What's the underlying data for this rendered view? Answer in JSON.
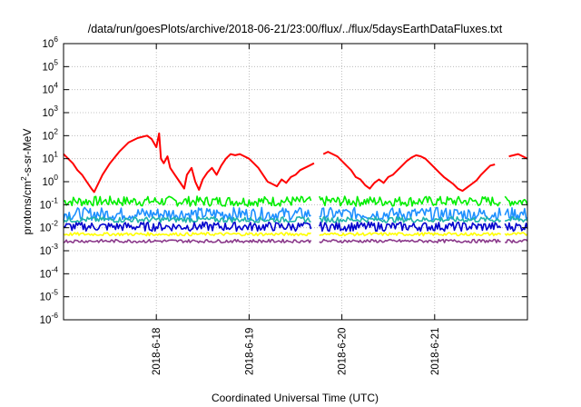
{
  "chart_data": {
    "type": "line",
    "title": "/data/run/goesPlots/archive/2018-06-21/23:00/flux/../flux/5daysEarthDataFluxes.txt",
    "xlabel": "Coordinated Universal Time (UTC)",
    "ylabel": {
      "pre": "protons/cm",
      "sup": "2",
      "post": "-s-sr-MeV"
    },
    "yscale": "log",
    "ylim": [
      -6,
      6
    ],
    "y_ticks": [
      {
        "base": "10",
        "exp": "-6"
      },
      {
        "base": "10",
        "exp": "-5"
      },
      {
        "base": "10",
        "exp": "-4"
      },
      {
        "base": "10",
        "exp": "-3"
      },
      {
        "base": "10",
        "exp": "-2"
      },
      {
        "base": "10",
        "exp": "-1"
      },
      {
        "base": "10",
        "exp": "0"
      },
      {
        "base": "10",
        "exp": "1"
      },
      {
        "base": "10",
        "exp": "2"
      },
      {
        "base": "10",
        "exp": "3"
      },
      {
        "base": "10",
        "exp": "4"
      },
      {
        "base": "10",
        "exp": "5"
      },
      {
        "base": "10",
        "exp": "6"
      }
    ],
    "xlim": [
      0,
      5
    ],
    "x_tick_labels": [
      {
        "x": 1,
        "label": "2018-6-18"
      },
      {
        "x": 2,
        "label": "2018-6-19"
      },
      {
        "x": 3,
        "label": "2018-6-20"
      },
      {
        "x": 4,
        "label": "2018-6-21"
      }
    ],
    "grid": true,
    "series": [
      {
        "color": "#ff0000",
        "points": [
          [
            0,
            1.2
          ],
          [
            0.05,
            1.0
          ],
          [
            0.1,
            0.8
          ],
          [
            0.15,
            0.5
          ],
          [
            0.2,
            0.3
          ],
          [
            0.25,
            0.0
          ],
          [
            0.3,
            -0.3
          ],
          [
            0.33,
            -0.45
          ],
          [
            0.36,
            -0.2
          ],
          [
            0.42,
            0.3
          ],
          [
            0.5,
            0.8
          ],
          [
            0.6,
            1.3
          ],
          [
            0.7,
            1.7
          ],
          [
            0.8,
            1.9
          ],
          [
            0.9,
            2.0
          ],
          [
            0.95,
            1.85
          ],
          [
            1.0,
            1.5
          ],
          [
            1.03,
            2.1
          ],
          [
            1.05,
            1.0
          ],
          [
            1.08,
            0.8
          ],
          [
            1.12,
            1.1
          ],
          [
            1.15,
            0.6
          ],
          [
            1.2,
            0.3
          ],
          [
            1.25,
            0.0
          ],
          [
            1.3,
            -0.3
          ],
          [
            1.33,
            0.3
          ],
          [
            1.38,
            0.6
          ],
          [
            1.42,
            0.0
          ],
          [
            1.46,
            -0.35
          ],
          [
            1.5,
            0.1
          ],
          [
            1.55,
            0.4
          ],
          [
            1.6,
            0.6
          ],
          [
            1.65,
            0.3
          ],
          [
            1.7,
            0.7
          ],
          [
            1.75,
            1.0
          ],
          [
            1.8,
            1.2
          ],
          [
            1.85,
            1.15
          ],
          [
            1.9,
            1.2
          ],
          [
            1.95,
            1.1
          ],
          [
            2.0,
            1.0
          ],
          [
            2.05,
            0.8
          ],
          [
            2.1,
            0.6
          ],
          [
            2.15,
            0.3
          ],
          [
            2.2,
            0.0
          ],
          [
            2.25,
            -0.1
          ],
          [
            2.3,
            -0.2
          ],
          [
            2.35,
            0.1
          ],
          [
            2.4,
            -0.05
          ],
          [
            2.45,
            0.2
          ],
          [
            2.5,
            0.3
          ],
          [
            2.55,
            0.5
          ],
          [
            2.6,
            0.6
          ],
          [
            2.65,
            0.7
          ],
          [
            2.7,
            0.8
          ],
          [
            null,
            null
          ],
          [
            2.8,
            1.2
          ],
          [
            2.85,
            1.3
          ],
          [
            2.9,
            1.2
          ],
          [
            2.95,
            1.1
          ],
          [
            3.0,
            0.9
          ],
          [
            3.05,
            0.7
          ],
          [
            3.1,
            0.5
          ],
          [
            3.15,
            0.2
          ],
          [
            3.2,
            0.1
          ],
          [
            3.25,
            -0.15
          ],
          [
            3.3,
            -0.3
          ],
          [
            3.35,
            -0.05
          ],
          [
            3.4,
            0.1
          ],
          [
            3.45,
            -0.05
          ],
          [
            3.5,
            0.2
          ],
          [
            3.55,
            0.3
          ],
          [
            3.6,
            0.5
          ],
          [
            3.65,
            0.7
          ],
          [
            3.7,
            0.9
          ],
          [
            3.75,
            1.05
          ],
          [
            3.8,
            1.15
          ],
          [
            3.85,
            1.1
          ],
          [
            3.9,
            1.0
          ],
          [
            3.95,
            0.8
          ],
          [
            4.0,
            0.6
          ],
          [
            4.05,
            0.4
          ],
          [
            4.1,
            0.2
          ],
          [
            4.15,
            0.05
          ],
          [
            4.2,
            -0.1
          ],
          [
            4.25,
            -0.3
          ],
          [
            4.3,
            -0.4
          ],
          [
            4.35,
            -0.25
          ],
          [
            4.4,
            -0.1
          ],
          [
            4.45,
            0.05
          ],
          [
            4.5,
            0.3
          ],
          [
            4.55,
            0.5
          ],
          [
            4.6,
            0.7
          ],
          [
            4.65,
            0.75
          ],
          [
            null,
            null
          ],
          [
            4.8,
            1.1
          ],
          [
            4.85,
            1.15
          ],
          [
            4.9,
            1.2
          ],
          [
            4.95,
            1.1
          ],
          [
            5.0,
            1.0
          ]
        ]
      },
      {
        "color": "#00ee00",
        "baseline": -0.85,
        "amplitude": 0.22,
        "gaps": [
          [
            2.68,
            2.75
          ],
          [
            4.72,
            4.75
          ]
        ]
      },
      {
        "color": "#1e90ff",
        "baseline": -1.4,
        "amplitude": 0.28,
        "gaps": [
          [
            2.68,
            2.75
          ],
          [
            4.72,
            4.75
          ]
        ]
      },
      {
        "color": "#0000cd",
        "baseline": -1.95,
        "amplitude": 0.2,
        "gaps": [
          [
            2.68,
            2.75
          ],
          [
            4.72,
            4.75
          ]
        ]
      },
      {
        "color": "#20b2aa",
        "baseline": -1.65,
        "amplitude": 0.12,
        "gaps": [
          [
            2.68,
            2.75
          ],
          [
            4.72,
            4.75
          ]
        ]
      },
      {
        "color": "#ffff00",
        "baseline": -2.28,
        "amplitude": 0.07,
        "gaps": [
          [
            2.68,
            2.75
          ],
          [
            4.72,
            4.75
          ]
        ]
      },
      {
        "color": "#8b3a8b",
        "baseline": -2.58,
        "amplitude": 0.07,
        "gaps": [
          [
            2.68,
            2.75
          ],
          [
            4.72,
            4.75
          ]
        ]
      }
    ]
  }
}
